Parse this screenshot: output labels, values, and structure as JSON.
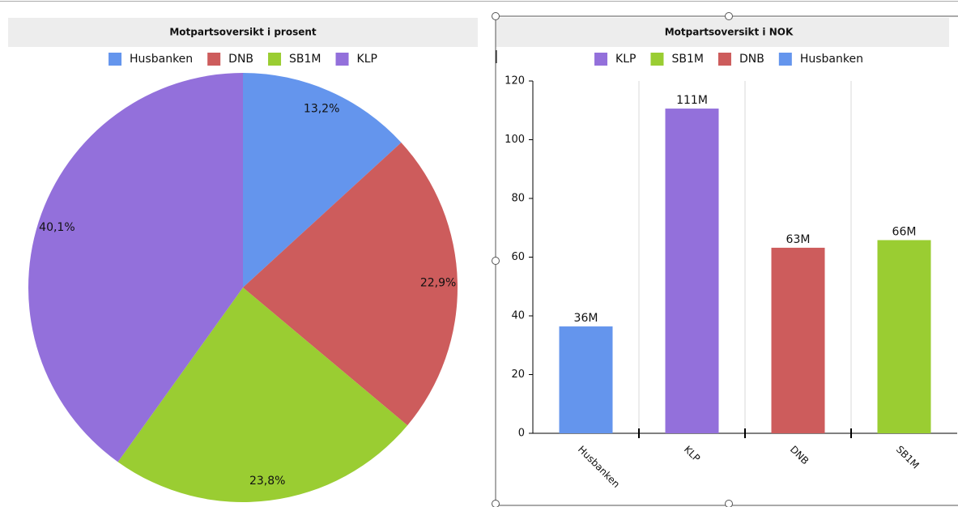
{
  "chart_data": [
    {
      "type": "pie",
      "title": "Motpartsoversikt i prosent",
      "categories": [
        "Husbanken",
        "DNB",
        "SB1M",
        "KLP"
      ],
      "values": [
        13.2,
        22.9,
        23.8,
        40.1
      ],
      "value_labels": [
        "13,2%",
        "22,9%",
        "23,8%",
        "40,1%"
      ],
      "colors": [
        "#6495ed",
        "#cd5c5c",
        "#9acd32",
        "#9370db"
      ],
      "legend": "top"
    },
    {
      "type": "bar",
      "title": "Motpartsoversikt i NOK",
      "categories": [
        "Husbanken",
        "KLP",
        "DNB",
        "SB1M"
      ],
      "values": [
        36.4,
        110.6,
        63.2,
        65.8
      ],
      "value_labels": [
        "36M",
        "111M",
        "63M",
        "66M"
      ],
      "colors": [
        "#6495ed",
        "#9370db",
        "#cd5c5c",
        "#9acd32"
      ],
      "legend_order": [
        1,
        3,
        2,
        0
      ],
      "ylim": [
        0,
        120
      ],
      "yticks": [
        0,
        20,
        40,
        60,
        80,
        100,
        120
      ],
      "grid": true,
      "legend": "top"
    }
  ]
}
